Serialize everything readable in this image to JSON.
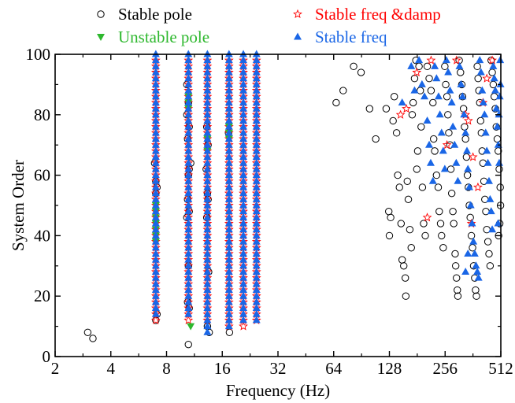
{
  "chart_data": {
    "type": "scatter",
    "title": "",
    "xlabel": "Frequency (Hz)",
    "ylabel": "System Order",
    "x_scale": "log2",
    "xlim": [
      2,
      512
    ],
    "ylim": [
      0,
      100
    ],
    "x_ticks": [
      2,
      4,
      8,
      16,
      32,
      64,
      128,
      256,
      512
    ],
    "x_tick_labels": [
      "2",
      "4",
      "8",
      "16",
      "32",
      "64",
      "128",
      "256",
      "512"
    ],
    "y_ticks": [
      0,
      20,
      40,
      60,
      80,
      100
    ],
    "y_tick_labels": [
      "0",
      "20",
      "40",
      "60",
      "80",
      "100"
    ],
    "grid": false,
    "legend_position": "top",
    "legend": [
      {
        "name": "Stable pole",
        "marker": "open-circle",
        "color": "#000000"
      },
      {
        "name": "Stable freq &damp",
        "marker": "open-star",
        "color": "#ff0000"
      },
      {
        "name": "Unstable pole",
        "marker": "filled-down-triangle",
        "color": "#2eb82e"
      },
      {
        "name": "Stable freq",
        "marker": "filled-up-triangle",
        "color": "#1a66e6"
      }
    ],
    "series": [
      {
        "name": "Stable pole",
        "marker": "open-circle",
        "color": "#000000",
        "points": [
          [
            3.0,
            8
          ],
          [
            3.2,
            6
          ],
          [
            6.9,
            64
          ],
          [
            7.0,
            58
          ],
          [
            7.1,
            56
          ],
          [
            7.0,
            54
          ],
          [
            7.1,
            14
          ],
          [
            7.0,
            12
          ],
          [
            10.3,
            90
          ],
          [
            10.5,
            84
          ],
          [
            10.3,
            80
          ],
          [
            10.6,
            76
          ],
          [
            10.4,
            72
          ],
          [
            10.6,
            62
          ],
          [
            10.8,
            64
          ],
          [
            10.5,
            60
          ],
          [
            10.4,
            52
          ],
          [
            10.6,
            48
          ],
          [
            10.3,
            46
          ],
          [
            10.5,
            30
          ],
          [
            10.4,
            18
          ],
          [
            10.6,
            16
          ],
          [
            10.5,
            4
          ],
          [
            13.2,
            76
          ],
          [
            13.4,
            70
          ],
          [
            13.1,
            62
          ],
          [
            13.3,
            54
          ],
          [
            13.4,
            52
          ],
          [
            13.2,
            46
          ],
          [
            13.5,
            28
          ],
          [
            13.3,
            10
          ],
          [
            13.6,
            8
          ],
          [
            17.3,
            74
          ],
          [
            17.5,
            8
          ],
          [
            66,
            84
          ],
          [
            72,
            88
          ],
          [
            82,
            96
          ],
          [
            90,
            94
          ],
          [
            100,
            82
          ],
          [
            108,
            72
          ],
          [
            123,
            82
          ],
          [
            127,
            48
          ],
          [
            130,
            46
          ],
          [
            128,
            40
          ],
          [
            134,
            78
          ],
          [
            136,
            86
          ],
          [
            140,
            74
          ],
          [
            142,
            60
          ],
          [
            145,
            56
          ],
          [
            148,
            44
          ],
          [
            150,
            32
          ],
          [
            153,
            30
          ],
          [
            156,
            26
          ],
          [
            157,
            20
          ],
          [
            160,
            58
          ],
          [
            162,
            52
          ],
          [
            165,
            42
          ],
          [
            168,
            36
          ],
          [
            170,
            80
          ],
          [
            172,
            84
          ],
          [
            175,
            92
          ],
          [
            178,
            98
          ],
          [
            180,
            62
          ],
          [
            182,
            68
          ],
          [
            185,
            96
          ],
          [
            188,
            88
          ],
          [
            190,
            76
          ],
          [
            193,
            56
          ],
          [
            196,
            44
          ],
          [
            200,
            40
          ],
          [
            205,
            96
          ],
          [
            210,
            92
          ],
          [
            215,
            88
          ],
          [
            220,
            84
          ],
          [
            222,
            72
          ],
          [
            225,
            68
          ],
          [
            230,
            60
          ],
          [
            235,
            56
          ],
          [
            238,
            48
          ],
          [
            242,
            44
          ],
          [
            245,
            40
          ],
          [
            250,
            36
          ],
          [
            255,
            96
          ],
          [
            258,
            90
          ],
          [
            262,
            86
          ],
          [
            265,
            80
          ],
          [
            268,
            74
          ],
          [
            272,
            70
          ],
          [
            275,
            62
          ],
          [
            278,
            54
          ],
          [
            282,
            48
          ],
          [
            285,
            44
          ],
          [
            290,
            34
          ],
          [
            292,
            30
          ],
          [
            295,
            26
          ],
          [
            298,
            22
          ],
          [
            300,
            20
          ],
          [
            305,
            98
          ],
          [
            310,
            94
          ],
          [
            315,
            90
          ],
          [
            318,
            86
          ],
          [
            322,
            82
          ],
          [
            326,
            76
          ],
          [
            330,
            72
          ],
          [
            334,
            66
          ],
          [
            338,
            60
          ],
          [
            342,
            56
          ],
          [
            346,
            50
          ],
          [
            350,
            46
          ],
          [
            355,
            40
          ],
          [
            360,
            36
          ],
          [
            365,
            30
          ],
          [
            370,
            26
          ],
          [
            374,
            22
          ],
          [
            378,
            20
          ],
          [
            382,
            96
          ],
          [
            386,
            92
          ],
          [
            390,
            88
          ],
          [
            394,
            84
          ],
          [
            398,
            78
          ],
          [
            402,
            74
          ],
          [
            406,
            68
          ],
          [
            410,
            64
          ],
          [
            415,
            58
          ],
          [
            420,
            52
          ],
          [
            425,
            48
          ],
          [
            430,
            42
          ],
          [
            436,
            38
          ],
          [
            442,
            34
          ],
          [
            448,
            30
          ],
          [
            454,
            98
          ],
          [
            460,
            94
          ],
          [
            466,
            90
          ],
          [
            472,
            86
          ],
          [
            478,
            82
          ],
          [
            484,
            76
          ],
          [
            490,
            72
          ],
          [
            496,
            68
          ],
          [
            502,
            62
          ],
          [
            508,
            56
          ],
          [
            510,
            50
          ],
          [
            505,
            44
          ],
          [
            498,
            40
          ]
        ]
      },
      {
        "name": "Stable freq &damp",
        "marker": "open-star",
        "color": "#ff0000",
        "columns": [
          {
            "x": 7.0,
            "from": 12,
            "to": 98,
            "step": 2
          },
          {
            "x": 10.5,
            "from": 12,
            "to": 98,
            "step": 2
          },
          {
            "x": 13.3,
            "from": 12,
            "to": 98,
            "step": 2
          },
          {
            "x": 17.4,
            "from": 10,
            "to": 98,
            "step": 2
          },
          {
            "x": 20.8,
            "from": 10,
            "to": 98,
            "step": 2
          },
          {
            "x": 24.5,
            "from": 12,
            "to": 98,
            "step": 2
          }
        ],
        "points": [
          [
            147,
            80
          ],
          [
            158,
            82
          ],
          [
            180,
            94
          ],
          [
            205,
            46
          ],
          [
            215,
            98
          ],
          [
            262,
            70
          ],
          [
            295,
            98
          ],
          [
            330,
            80
          ],
          [
            342,
            78
          ],
          [
            355,
            44
          ],
          [
            362,
            66
          ],
          [
            385,
            56
          ],
          [
            410,
            84
          ],
          [
            430,
            92
          ],
          [
            460,
            98
          ]
        ]
      },
      {
        "name": "Unstable pole",
        "marker": "filled-down-triangle",
        "color": "#2eb82e",
        "points": [
          [
            7.0,
            50
          ],
          [
            7.0,
            48
          ],
          [
            7.0,
            46
          ],
          [
            7.0,
            44
          ],
          [
            7.0,
            42
          ],
          [
            7.0,
            40
          ],
          [
            7.0,
            38
          ],
          [
            10.5,
            86
          ],
          [
            10.5,
            84
          ],
          [
            10.5,
            82
          ],
          [
            10.8,
            10
          ],
          [
            13.3,
            72
          ],
          [
            13.3,
            68
          ],
          [
            17.4,
            76
          ],
          [
            17.4,
            74
          ],
          [
            17.4,
            72
          ]
        ]
      },
      {
        "name": "Stable freq",
        "marker": "filled-up-triangle",
        "color": "#1a66e6",
        "columns": [
          {
            "x": 7.0,
            "from": 14,
            "to": 100,
            "step": 2
          },
          {
            "x": 10.5,
            "from": 14,
            "to": 100,
            "step": 2
          },
          {
            "x": 13.3,
            "from": 8,
            "to": 100,
            "step": 2
          },
          {
            "x": 17.4,
            "from": 10,
            "to": 100,
            "step": 2
          },
          {
            "x": 20.8,
            "from": 12,
            "to": 100,
            "step": 2
          },
          {
            "x": 24.5,
            "from": 12,
            "to": 100,
            "step": 2
          }
        ],
        "points": [
          [
            150,
            84
          ],
          [
            168,
            96
          ],
          [
            175,
            88
          ],
          [
            185,
            98
          ],
          [
            192,
            90
          ],
          [
            198,
            86
          ],
          [
            205,
            78
          ],
          [
            210,
            70
          ],
          [
            214,
            64
          ],
          [
            220,
            58
          ],
          [
            225,
            96
          ],
          [
            230,
            92
          ],
          [
            236,
            86
          ],
          [
            240,
            80
          ],
          [
            245,
            74
          ],
          [
            250,
            68
          ],
          [
            255,
            62
          ],
          [
            260,
            98
          ],
          [
            266,
            94
          ],
          [
            272,
            88
          ],
          [
            278,
            84
          ],
          [
            282,
            76
          ],
          [
            288,
            70
          ],
          [
            294,
            64
          ],
          [
            300,
            58
          ],
          [
            306,
            96
          ],
          [
            312,
            90
          ],
          [
            318,
            86
          ],
          [
            324,
            80
          ],
          [
            330,
            74
          ],
          [
            336,
            68
          ],
          [
            340,
            62
          ],
          [
            346,
            56
          ],
          [
            352,
            50
          ],
          [
            358,
            44
          ],
          [
            364,
            38
          ],
          [
            370,
            34
          ],
          [
            376,
            30
          ],
          [
            382,
            28
          ],
          [
            388,
            26
          ],
          [
            394,
            98
          ],
          [
            400,
            94
          ],
          [
            406,
            88
          ],
          [
            412,
            84
          ],
          [
            418,
            80
          ],
          [
            424,
            74
          ],
          [
            430,
            68
          ],
          [
            436,
            64
          ],
          [
            442,
            58
          ],
          [
            448,
            52
          ],
          [
            454,
            48
          ],
          [
            460,
            42
          ],
          [
            466,
            96
          ],
          [
            472,
            92
          ],
          [
            478,
            88
          ],
          [
            484,
            82
          ],
          [
            490,
            76
          ],
          [
            496,
            70
          ],
          [
            502,
            64
          ],
          [
            508,
            98
          ],
          [
            510,
            90
          ],
          [
            505,
            86
          ],
          [
            500,
            80
          ],
          [
            495,
            44
          ],
          [
            340,
            34
          ],
          [
            330,
            28
          ]
        ]
      }
    ]
  }
}
